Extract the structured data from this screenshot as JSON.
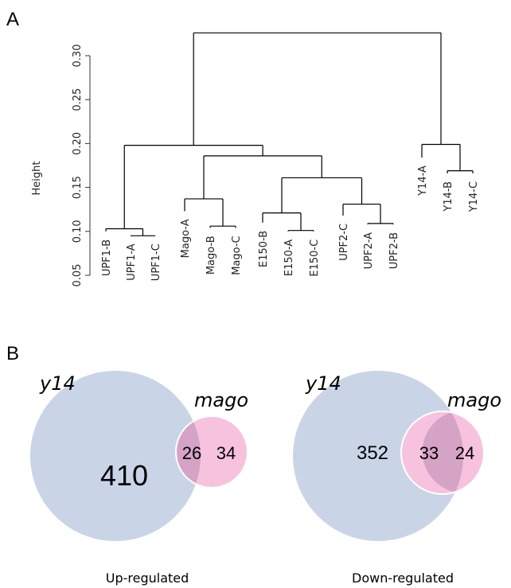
{
  "panels": {
    "a": "A",
    "b": "B"
  },
  "chart_data": [
    {
      "type": "dendrogram",
      "ylabel": "Height",
      "ylim": [
        0.05,
        0.33
      ],
      "y_ticks": [
        "0.05",
        "0.10",
        "0.15",
        "0.20",
        "0.25",
        "0.30"
      ],
      "leaves": [
        "UPF1-B",
        "UPF1-A",
        "UPF1-C",
        "Mago-A",
        "Mago-B",
        "Mago-C",
        "E150-B",
        "E150-A",
        "E150-C",
        "UPF2-C",
        "UPF2-A",
        "UPF2-B",
        "Y14-A",
        "Y14-B",
        "Y14-C"
      ],
      "leaf_heights": [
        0.1,
        0.095,
        0.095,
        0.123,
        0.104,
        0.104,
        0.11,
        0.1,
        0.1,
        0.118,
        0.108,
        0.108,
        0.184,
        0.166,
        0.166
      ],
      "merges": [
        {
          "left": "UPF1-A",
          "right": "UPF1-C",
          "height": 0.095
        },
        {
          "left": "UPF1-B",
          "right": "(UPF1-A,UPF1-C)",
          "height": 0.103
        },
        {
          "left": "Mago-B",
          "right": "Mago-C",
          "height": 0.106
        },
        {
          "left": "Mago-A",
          "right": "(Mago-B,Mago-C)",
          "height": 0.137
        },
        {
          "left": "E150-A",
          "right": "E150-C",
          "height": 0.101
        },
        {
          "left": "E150-B",
          "right": "(E150-A,E150-C)",
          "height": 0.121
        },
        {
          "left": "UPF2-A",
          "right": "UPF2-B",
          "height": 0.109
        },
        {
          "left": "UPF2-C",
          "right": "(UPF2-A,UPF2-B)",
          "height": 0.131
        },
        {
          "left": "E150 cluster",
          "right": "UPF2 cluster",
          "height": 0.161
        },
        {
          "left": "Mago cluster",
          "right": "E150+UPF2 cluster",
          "height": 0.186
        },
        {
          "left": "UPF1 cluster",
          "right": "Mago+E150+UPF2 cluster",
          "height": 0.198
        },
        {
          "left": "Y14-B",
          "right": "Y14-C",
          "height": 0.169
        },
        {
          "left": "Y14-A",
          "right": "(Y14-B,Y14-C)",
          "height": 0.199
        },
        {
          "left": "UPF1+Mago+E150+UPF2",
          "right": "Y14 cluster",
          "height": 0.326
        }
      ]
    },
    {
      "type": "venn",
      "caption": "Up-regulated",
      "sets": [
        {
          "name": "y14",
          "only": 410,
          "color": "#c9d5e7"
        },
        {
          "name": "mago",
          "only": 34,
          "color": "#f7c2dd"
        }
      ],
      "overlap": 26,
      "overlap_color": "#d5a3c6"
    },
    {
      "type": "venn",
      "caption": "Down-regulated",
      "sets": [
        {
          "name": "y14",
          "only": 352,
          "color": "#c9d5e7"
        },
        {
          "name": "mago",
          "only": 24,
          "color": "#f7c2dd"
        }
      ],
      "overlap": 33,
      "overlap_color": "#d5a3c6"
    }
  ]
}
